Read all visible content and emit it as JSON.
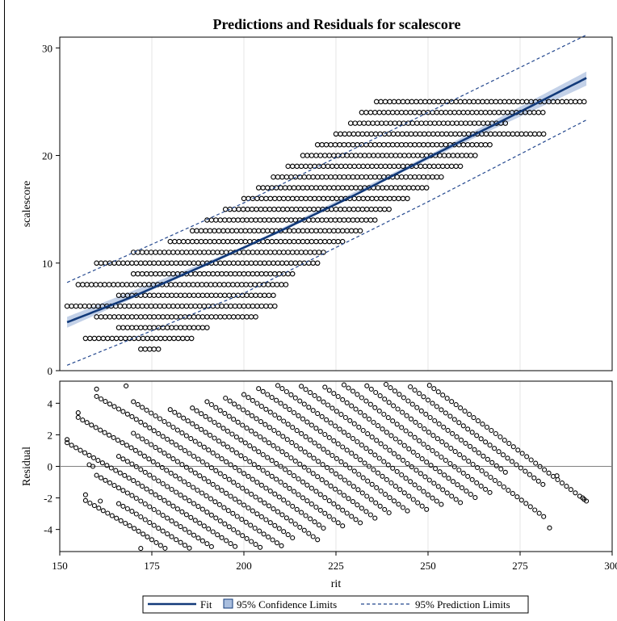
{
  "title": "Predictions and Residuals for scalescore",
  "colors": {
    "fit": "#123a7a",
    "confidence_band": "#a9bede",
    "prediction": "#23478e",
    "markers": "#000000",
    "gridline": "#e5e5e5"
  },
  "legend": {
    "fit": "Fit",
    "confidence": "95% Confidence Limits",
    "prediction": "95% Prediction Limits"
  },
  "chart_data": [
    {
      "type": "scatter",
      "panel": "predictions",
      "ylabel": "scalescore",
      "xlim": [
        150,
        300
      ],
      "ylim": [
        0,
        31
      ],
      "xticks": [
        150,
        175,
        200,
        225,
        250,
        275,
        300
      ],
      "yticks": [
        0,
        10,
        20,
        30
      ],
      "fit": {
        "x": [
          152,
          170,
          190,
          210,
          230,
          250,
          270,
          293
        ],
        "y": [
          4.5,
          6.9,
          9.9,
          13.0,
          16.3,
          19.8,
          23.2,
          27.2
        ]
      },
      "confidence_band": {
        "x": [
          152,
          200,
          250,
          293
        ],
        "lower": [
          4.0,
          11.3,
          19.6,
          26.5
        ],
        "upper": [
          5.0,
          11.5,
          20.0,
          27.8
        ]
      },
      "prediction_limits": {
        "x": [
          152,
          200,
          250,
          293
        ],
        "lower": [
          0.5,
          7.2,
          15.7,
          23.3
        ],
        "upper": [
          8.2,
          15.6,
          24.0,
          31.2
        ]
      },
      "points_note": "Dense horizontal bands of circle markers at each integer score from 2 to 25",
      "point_bands": [
        {
          "y": 2,
          "x": [
            172,
            177
          ]
        },
        {
          "y": 3,
          "x": [
            157,
            162,
            165,
            169,
            173,
            176,
            178,
            184,
            186
          ]
        },
        {
          "y": 4,
          "x": [
            166,
            171,
            174,
            178,
            181,
            183,
            186,
            188,
            190
          ]
        },
        {
          "y": 5,
          "x": [
            160,
            163,
            166,
            170,
            173,
            176,
            180,
            183,
            186,
            189,
            192,
            197,
            200,
            204
          ]
        },
        {
          "y": 6,
          "x": [
            152,
            155,
            158,
            160,
            164,
            169,
            171,
            175,
            177,
            180,
            184,
            186,
            188,
            191,
            209
          ]
        },
        {
          "y": 7,
          "x": [
            166,
            173,
            178,
            180,
            209
          ]
        },
        {
          "y": 8,
          "x": [
            155,
            162,
            170,
            175,
            177,
            212
          ]
        },
        {
          "y": 9,
          "x": [
            170,
            179,
            214
          ]
        },
        {
          "y": 10,
          "x": [
            160,
            165,
            172,
            176,
            178,
            220
          ]
        },
        {
          "y": 11,
          "x": [
            170,
            174,
            179,
            182,
            186,
            222
          ]
        },
        {
          "y": 12,
          "x": [
            180,
            183,
            185,
            187,
            227
          ]
        },
        {
          "y": 13,
          "x": [
            186,
            189,
            232
          ]
        },
        {
          "y": 14,
          "x": [
            190,
            236
          ]
        },
        {
          "y": 15,
          "x": [
            195,
            240
          ]
        },
        {
          "y": 16,
          "x": [
            200,
            245
          ]
        },
        {
          "y": 17,
          "x": [
            204,
            250
          ]
        },
        {
          "y": 18,
          "x": [
            208,
            254
          ]
        },
        {
          "y": 19,
          "x": [
            212,
            259
          ]
        },
        {
          "y": 20,
          "x": [
            216,
            263
          ]
        },
        {
          "y": 21,
          "x": [
            220,
            267
          ]
        },
        {
          "y": 22,
          "x": [
            225,
            270,
            282
          ]
        },
        {
          "y": 23,
          "x": [
            229,
            272
          ]
        },
        {
          "y": 24,
          "x": [
            232,
            277,
            282
          ]
        },
        {
          "y": 25,
          "x": [
            236,
            279,
            292,
            293
          ]
        }
      ]
    },
    {
      "type": "scatter",
      "panel": "residuals",
      "xlabel": "rit",
      "ylabel": "Residual",
      "xlim": [
        150,
        300
      ],
      "ylim": [
        -5.4,
        5.4
      ],
      "xticks": [
        150,
        175,
        200,
        225,
        250,
        275,
        300
      ],
      "yticks": [
        -4,
        -2,
        0,
        2,
        4
      ],
      "reference_line": 0,
      "points_note": "Parallel diagonal streaks of circle markers, one per integer score, each descending with slope about -0.17 per rit unit",
      "isolated_points": {
        "x": [
          152,
          155,
          157,
          158,
          159,
          160,
          161,
          168,
          283,
          285,
          292,
          293
        ],
        "y": [
          1.7,
          3.4,
          -1.8,
          0.1,
          0.0,
          4.9,
          -2.2,
          5.1,
          -3.9,
          -0.6,
          -2.0,
          -2.2
        ]
      }
    }
  ]
}
